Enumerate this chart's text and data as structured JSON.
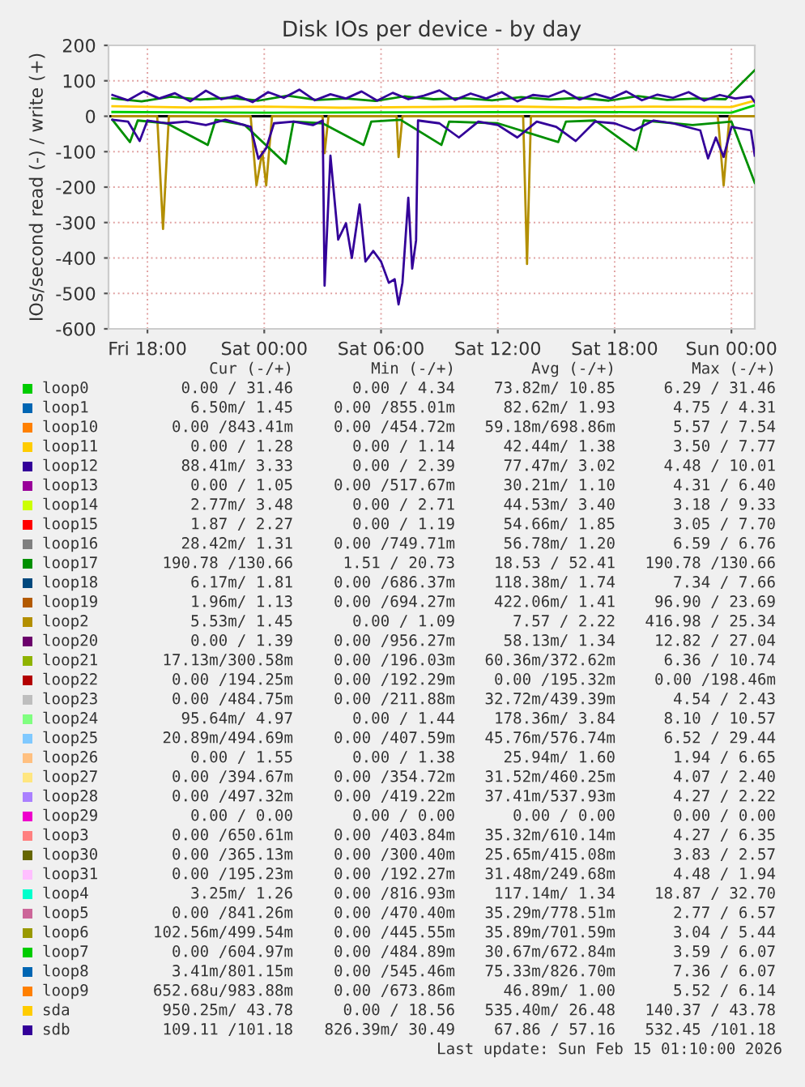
{
  "chart_data": {
    "type": "line",
    "title": "Disk IOs per device - by day",
    "ylabel": "IOs/second read (-) / write (+)",
    "xlim": [
      "2026-02-13T16:00",
      "2026-02-15T01:12"
    ],
    "ylim": [
      -600,
      200
    ],
    "xticks": [
      {
        "value": "2026-02-13T18:00",
        "label": "Fri 18:00"
      },
      {
        "value": "2026-02-14T00:00",
        "label": "Sat 00:00"
      },
      {
        "value": "2026-02-14T06:00",
        "label": "Sat 06:00"
      },
      {
        "value": "2026-02-14T12:00",
        "label": "Sat 12:00"
      },
      {
        "value": "2026-02-14T18:00",
        "label": "Sat 18:00"
      },
      {
        "value": "2026-02-15T00:00",
        "label": "Sun 00:00"
      }
    ],
    "yticks": [
      -600,
      -500,
      -400,
      -300,
      -200,
      -100,
      0,
      100,
      200
    ],
    "grid": true,
    "legend": "bottom",
    "ref_lines": [
      {
        "axis": "y",
        "value": 0,
        "color": "#000000"
      }
    ],
    "series": [
      {
        "name": "loop0",
        "color": "#00cc00",
        "x": [
          "2026-02-13T16:12",
          "2026-02-14T00:00",
          "2026-02-14T08:00",
          "2026-02-14T16:00",
          "2026-02-15T00:00",
          "2026-02-15T01:12"
        ],
        "values": [
          12,
          10,
          11,
          12,
          10,
          31
        ]
      },
      {
        "name": "loop1",
        "color": "#0066b3"
      },
      {
        "name": "loop10",
        "color": "#ff8000"
      },
      {
        "name": "loop11",
        "color": "#ffcc00"
      },
      {
        "name": "loop12",
        "color": "#330099"
      },
      {
        "name": "loop13",
        "color": "#990099"
      },
      {
        "name": "loop14",
        "color": "#ccff00"
      },
      {
        "name": "loop15",
        "color": "#ff0000"
      },
      {
        "name": "loop16",
        "color": "#808080"
      },
      {
        "name": "loop17",
        "color": "#008f00",
        "x": [
          "2026-02-13T16:12",
          "2026-02-13T17:42",
          "2026-02-13T19:12",
          "2026-02-13T20:42",
          "2026-02-13T22:12",
          "2026-02-13T23:42",
          "2026-02-14T01:12",
          "2026-02-14T02:42",
          "2026-02-14T04:12",
          "2026-02-14T05:42",
          "2026-02-14T07:12",
          "2026-02-14T08:42",
          "2026-02-14T10:12",
          "2026-02-14T11:42",
          "2026-02-14T13:12",
          "2026-02-14T14:42",
          "2026-02-14T16:12",
          "2026-02-14T17:42",
          "2026-02-14T19:12",
          "2026-02-14T20:42",
          "2026-02-14T22:12",
          "2026-02-14T23:42",
          "2026-02-15T01:12"
        ],
        "values": [
          50,
          42,
          55,
          47,
          52,
          44,
          58,
          46,
          50,
          43,
          56,
          48,
          51,
          45,
          54,
          47,
          52,
          44,
          57,
          46,
          50,
          48,
          130
        ]
      },
      {
        "name": "loop18",
        "color": "#00487d"
      },
      {
        "name": "loop19",
        "color": "#b35a00"
      },
      {
        "name": "loop2",
        "color": "#b38f00"
      },
      {
        "name": "loop20",
        "color": "#6b006b"
      },
      {
        "name": "loop21",
        "color": "#8fb300"
      },
      {
        "name": "loop22",
        "color": "#b30000"
      },
      {
        "name": "loop23",
        "color": "#bebebe"
      },
      {
        "name": "loop24",
        "color": "#80ff80"
      },
      {
        "name": "loop25",
        "color": "#80c9ff"
      },
      {
        "name": "loop26",
        "color": "#ffc080"
      },
      {
        "name": "loop27",
        "color": "#ffe680"
      },
      {
        "name": "loop28",
        "color": "#aa80ff"
      },
      {
        "name": "loop29",
        "color": "#ee00cc"
      },
      {
        "name": "loop3",
        "color": "#ff8080"
      },
      {
        "name": "loop30",
        "color": "#666600"
      },
      {
        "name": "loop31",
        "color": "#ffbfff"
      },
      {
        "name": "loop4",
        "color": "#00ffcc"
      },
      {
        "name": "loop5",
        "color": "#cc6699"
      },
      {
        "name": "loop6",
        "color": "#999900"
      },
      {
        "name": "loop7",
        "color": "#00cc00"
      },
      {
        "name": "loop8",
        "color": "#0066b3"
      },
      {
        "name": "loop9",
        "color": "#ff8000"
      },
      {
        "name": "sda",
        "color": "#ffcc00",
        "x": [
          "2026-02-13T16:12",
          "2026-02-13T20:00",
          "2026-02-14T00:00",
          "2026-02-14T04:00",
          "2026-02-14T08:00",
          "2026-02-14T12:00",
          "2026-02-14T16:00",
          "2026-02-14T20:00",
          "2026-02-15T00:00",
          "2026-02-15T01:12"
        ],
        "values": [
          28,
          25,
          27,
          24,
          26,
          28,
          25,
          27,
          26,
          44
        ]
      },
      {
        "name": "sdb",
        "color": "#330099",
        "x": [
          "2026-02-13T16:12",
          "2026-02-13T17:00",
          "2026-02-13T17:48",
          "2026-02-13T18:36",
          "2026-02-13T19:24",
          "2026-02-13T20:12",
          "2026-02-13T21:00",
          "2026-02-13T21:48",
          "2026-02-13T22:36",
          "2026-02-13T23:24",
          "2026-02-14T00:12",
          "2026-02-14T01:00",
          "2026-02-14T01:48",
          "2026-02-14T02:36",
          "2026-02-14T03:24",
          "2026-02-14T04:12",
          "2026-02-14T05:00",
          "2026-02-14T05:48",
          "2026-02-14T06:36",
          "2026-02-14T07:24",
          "2026-02-14T08:12",
          "2026-02-14T09:00",
          "2026-02-14T09:48",
          "2026-02-14T10:36",
          "2026-02-14T11:24",
          "2026-02-14T12:12",
          "2026-02-14T13:00",
          "2026-02-14T13:48",
          "2026-02-14T14:36",
          "2026-02-14T15:24",
          "2026-02-14T16:12",
          "2026-02-14T17:00",
          "2026-02-14T17:48",
          "2026-02-14T18:36",
          "2026-02-14T19:24",
          "2026-02-14T20:12",
          "2026-02-14T21:00",
          "2026-02-14T21:48",
          "2026-02-14T22:36",
          "2026-02-14T23:24",
          "2026-02-15T00:12",
          "2026-02-15T01:00",
          "2026-02-15T01:12"
        ],
        "values": [
          60,
          45,
          70,
          50,
          65,
          42,
          72,
          48,
          58,
          40,
          68,
          52,
          75,
          45,
          62,
          50,
          70,
          44,
          66,
          48,
          58,
          73,
          46,
          64,
          50,
          68,
          42,
          60,
          55,
          72,
          47,
          63,
          50,
          70,
          45,
          61,
          52,
          68,
          44,
          60,
          50,
          56,
          40
        ]
      },
      {
        "color": "#b38f00",
        "x": [
          "2026-02-13T16:12",
          "2026-02-13T18:30",
          "2026-02-13T18:48",
          "2026-02-13T19:06",
          "2026-02-13T23:18",
          "2026-02-13T23:36",
          "2026-02-13T23:54",
          "2026-02-14T00:06",
          "2026-02-14T00:24",
          "2026-02-14T03:00",
          "2026-02-14T03:06",
          "2026-02-14T03:18",
          "2026-02-14T06:48",
          "2026-02-14T06:54",
          "2026-02-14T07:06",
          "2026-02-14T13:18",
          "2026-02-14T13:30",
          "2026-02-14T13:42",
          "2026-02-14T23:18",
          "2026-02-14T23:36",
          "2026-02-14T23:54",
          "2026-02-15T01:12"
        ],
        "values": [
          0,
          0,
          -318,
          0,
          0,
          -195,
          -100,
          -195,
          0,
          0,
          -104,
          0,
          0,
          -115,
          0,
          0,
          -417,
          0,
          0,
          -195,
          0,
          0
        ]
      },
      {
        "color": "#008f00",
        "x": [
          "2026-02-13T16:12",
          "2026-02-13T17:06",
          "2026-02-13T17:30",
          "2026-02-13T19:00",
          "2026-02-13T21:06",
          "2026-02-13T21:30",
          "2026-02-13T23:00",
          "2026-02-14T01:06",
          "2026-02-14T01:30",
          "2026-02-14T03:00",
          "2026-02-14T05:06",
          "2026-02-14T05:30",
          "2026-02-14T07:00",
          "2026-02-14T09:06",
          "2026-02-14T09:30",
          "2026-02-14T12:00",
          "2026-02-14T15:06",
          "2026-02-14T15:30",
          "2026-02-14T17:00",
          "2026-02-14T19:06",
          "2026-02-14T19:30",
          "2026-02-14T22:00",
          "2026-02-15T00:00",
          "2026-02-15T01:12"
        ],
        "values": [
          -10,
          -73,
          -12,
          -20,
          -81,
          -10,
          -25,
          -134,
          -15,
          -20,
          -81,
          -15,
          -10,
          -81,
          -15,
          -20,
          -73,
          -15,
          -12,
          -96,
          -12,
          -25,
          -15,
          -188
        ]
      },
      {
        "color": "#330099",
        "x": [
          "2026-02-13T16:12",
          "2026-02-13T17:00",
          "2026-02-13T17:36",
          "2026-02-13T18:00",
          "2026-02-13T19:00",
          "2026-02-13T20:00",
          "2026-02-13T21:00",
          "2026-02-13T22:00",
          "2026-02-13T23:18",
          "2026-02-13T23:42",
          "2026-02-14T00:06",
          "2026-02-14T00:30",
          "2026-02-14T01:30",
          "2026-02-14T02:30",
          "2026-02-14T03:00",
          "2026-02-14T03:06",
          "2026-02-14T03:24",
          "2026-02-14T03:48",
          "2026-02-14T04:12",
          "2026-02-14T04:30",
          "2026-02-14T04:54",
          "2026-02-14T05:12",
          "2026-02-14T05:36",
          "2026-02-14T06:00",
          "2026-02-14T06:24",
          "2026-02-14T06:42",
          "2026-02-14T06:54",
          "2026-02-14T07:06",
          "2026-02-14T07:24",
          "2026-02-14T07:36",
          "2026-02-14T07:48",
          "2026-02-14T07:54",
          "2026-02-14T09:00",
          "2026-02-14T10:00",
          "2026-02-14T11:00",
          "2026-02-14T12:00",
          "2026-02-14T13:00",
          "2026-02-14T14:00",
          "2026-02-14T15:00",
          "2026-02-14T16:00",
          "2026-02-14T17:00",
          "2026-02-14T18:00",
          "2026-02-14T19:00",
          "2026-02-14T20:00",
          "2026-02-14T21:00",
          "2026-02-14T22:24",
          "2026-02-14T22:48",
          "2026-02-14T23:12",
          "2026-02-14T23:36",
          "2026-02-15T00:00",
          "2026-02-15T01:00",
          "2026-02-15T01:12"
        ],
        "values": [
          -10,
          -15,
          -70,
          -12,
          -20,
          -15,
          -25,
          -10,
          -30,
          -120,
          -90,
          -20,
          -15,
          -25,
          -12,
          -478,
          -111,
          -348,
          -302,
          -400,
          -249,
          -410,
          -380,
          -410,
          -470,
          -460,
          -531,
          -470,
          -230,
          -430,
          -350,
          -12,
          -20,
          -60,
          -15,
          -25,
          -60,
          -15,
          -30,
          -70,
          -15,
          -20,
          -40,
          -12,
          -20,
          -40,
          -119,
          -60,
          -115,
          -30,
          -40,
          -111
        ]
      }
    ],
    "annotations": [
      "Cur (-/+)",
      "Min (-/+)",
      "Avg (-/+)",
      "Max (-/+)",
      "0.00 / 31.46",
      "0.00 / 4.34",
      "73.82m/ 10.85",
      "6.29 / 31.46",
      "6.50m/ 1.45",
      "0.00 /855.01m",
      "82.62m/ 1.93",
      "4.75 / 4.31",
      "0.00 /843.41m",
      "0.00 /454.72m",
      "59.18m/698.86m",
      "5.57 / 7.54",
      "0.00 / 1.28",
      "0.00 / 1.14",
      "42.44m/ 1.38",
      "3.50 / 7.77",
      "88.41m/ 3.33",
      "0.00 / 2.39",
      "77.47m/ 3.02",
      "4.48 / 10.01",
      "0.00 / 1.05",
      "0.00 /517.67m",
      "30.21m/ 1.10",
      "4.31 / 6.40",
      "2.77m/ 3.48",
      "0.00 / 2.71",
      "44.53m/ 3.40",
      "3.18 / 9.33",
      "1.87 / 2.27",
      "0.00 / 1.19",
      "54.66m/ 1.85",
      "3.05 / 7.70",
      "28.42m/ 1.31",
      "0.00 /749.71m",
      "56.78m/ 1.20",
      "6.59 / 6.76",
      "190.78 /130.66",
      "1.51 / 20.73",
      "18.53 / 52.41",
      "190.78 /130.66",
      "6.17m/ 1.81",
      "0.00 /686.37m",
      "118.38m/ 1.74",
      "7.34 / 7.66",
      "1.96m/ 1.13",
      "0.00 /694.27m",
      "422.06m/ 1.41",
      "96.90 / 23.69",
      "5.53m/ 1.45",
      "0.00 / 1.09",
      "7.57 / 2.22",
      "416.98 / 25.34",
      "0.00 / 1.39",
      "0.00 /956.27m",
      "58.13m/ 1.34",
      "12.82 / 27.04",
      "17.13m/300.58m",
      "0.00 /196.03m",
      "60.36m/372.62m",
      "6.36 / 10.74",
      "0.00 /194.25m",
      "0.00 /192.29m",
      "0.00 /195.32m",
      "0.00 /198.46m",
      "0.00 /484.75m",
      "0.00 /211.88m",
      "32.72m/439.39m",
      "4.54 / 2.43",
      "95.64m/ 4.97",
      "0.00 / 1.44",
      "178.36m/ 3.84",
      "8.10 / 10.57",
      "20.89m/494.69m",
      "0.00 /407.59m",
      "45.76m/576.74m",
      "6.52 / 29.44",
      "0.00 / 1.55",
      "0.00 / 1.38",
      "25.94m/ 1.60",
      "1.94 / 6.65",
      "0.00 /394.67m",
      "0.00 /354.72m",
      "31.52m/460.25m",
      "4.07 / 2.40",
      "0.00 /497.32m",
      "0.00 /419.22m",
      "37.41m/537.93m",
      "4.27 / 2.22",
      "0.00 / 0.00",
      "0.00 / 0.00",
      "0.00 / 0.00",
      "0.00 / 0.00",
      "0.00 /650.61m",
      "0.00 /403.84m",
      "35.32m/610.14m",
      "4.27 / 6.35",
      "0.00 /365.13m",
      "0.00 /300.40m",
      "25.65m/415.08m",
      "3.83 / 2.57",
      "0.00 /195.23m",
      "0.00 /192.27m",
      "31.48m/249.68m",
      "4.48 / 1.94",
      "3.25m/ 1.26",
      "0.00 /816.93m",
      "117.14m/ 1.34",
      "18.87 / 32.70",
      "0.00 /841.26m",
      "0.00 /470.40m",
      "35.29m/778.51m",
      "2.77 / 6.57",
      "102.56m/499.54m",
      "0.00 /445.55m",
      "35.89m/701.59m",
      "3.04 / 5.44",
      "0.00 /604.97m",
      "0.00 /484.89m",
      "30.67m/672.84m",
      "3.59 / 6.07",
      "3.41m/801.15m",
      "0.00 /545.46m",
      "75.33m/826.70m",
      "7.36 / 6.07",
      "652.68u/983.88m",
      "0.00 /673.86m",
      "46.89m/ 1.00",
      "5.52 / 6.14",
      "950.25m/ 43.78",
      "0.00 / 18.56",
      "535.40m/ 26.48",
      "140.37 / 43.78",
      "109.11 /101.18",
      "826.39m/ 30.49",
      "67.86 / 57.16",
      "532.45 /101.18",
      "Last update: Sun Feb 15 01:10:00 2026"
    ]
  }
}
